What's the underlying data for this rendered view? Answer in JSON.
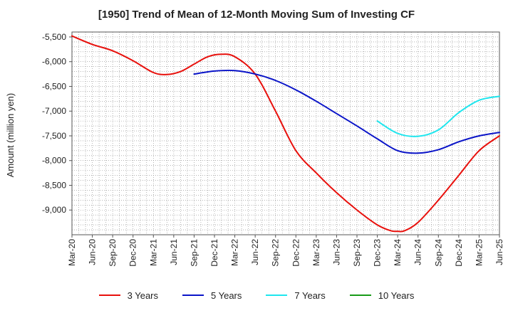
{
  "colors": {
    "three_years": "#e8100c",
    "five_years": "#0a14c8",
    "seven_years": "#1ee6ee",
    "ten_years": "#189a18",
    "grid": "#888888",
    "axis": "#555555"
  },
  "chart_data": {
    "type": "line",
    "title": "[1950]  Trend of Mean of 12-Month Moving Sum of Investing CF",
    "ylabel": "Amount (million yen)",
    "xlabel": "",
    "ylim": [
      -9500,
      -5400
    ],
    "y_ticks": [
      -5500,
      -6000,
      -6500,
      -7000,
      -7500,
      -8000,
      -8500,
      -9000
    ],
    "y_tick_labels": [
      "-5,500",
      "-6,000",
      "-6,500",
      "-7,000",
      "-7,500",
      "-8,000",
      "-8,500",
      "-9,000"
    ],
    "x_tick_labels": [
      "Mar-20",
      "Jun-20",
      "Sep-20",
      "Dec-20",
      "Mar-21",
      "Jun-21",
      "Sep-21",
      "Dec-21",
      "Mar-22",
      "Jun-22",
      "Sep-22",
      "Dec-22",
      "Mar-23",
      "Jun-23",
      "Sep-23",
      "Dec-23",
      "Mar-24",
      "Jun-24",
      "Sep-24",
      "Dec-24",
      "Mar-25",
      "Jun-25"
    ],
    "x_range_months": [
      0,
      63
    ],
    "grid": true,
    "legend_position": "bottom-center",
    "series": [
      {
        "name": "3 Years",
        "color_key": "three_years",
        "x": [
          0,
          3,
          6,
          9,
          12,
          14,
          16,
          18,
          20,
          22,
          24,
          27,
          30,
          33,
          36,
          39,
          42,
          45,
          47,
          48,
          49,
          51,
          54,
          57,
          60,
          63
        ],
        "y": [
          -5480,
          -5650,
          -5780,
          -5980,
          -6220,
          -6260,
          -6200,
          -6050,
          -5900,
          -5850,
          -5900,
          -6250,
          -7000,
          -7800,
          -8250,
          -8650,
          -9000,
          -9300,
          -9420,
          -9430,
          -9420,
          -9250,
          -8800,
          -8300,
          -7800,
          -7500
        ]
      },
      {
        "name": "5 Years",
        "color_key": "five_years",
        "x": [
          18,
          21,
          24,
          27,
          30,
          33,
          36,
          39,
          42,
          45,
          48,
          51,
          54,
          57,
          60,
          63
        ],
        "y": [
          -6250,
          -6190,
          -6180,
          -6250,
          -6380,
          -6570,
          -6800,
          -7050,
          -7300,
          -7560,
          -7800,
          -7850,
          -7780,
          -7620,
          -7500,
          -7430
        ]
      },
      {
        "name": "7 Years",
        "color_key": "seven_years",
        "x": [
          45,
          48,
          51,
          54,
          57,
          60,
          63
        ],
        "y": [
          -7200,
          -7450,
          -7510,
          -7380,
          -7030,
          -6780,
          -6700
        ]
      },
      {
        "name": "10 Years",
        "color_key": "ten_years",
        "x": [],
        "y": []
      }
    ]
  }
}
